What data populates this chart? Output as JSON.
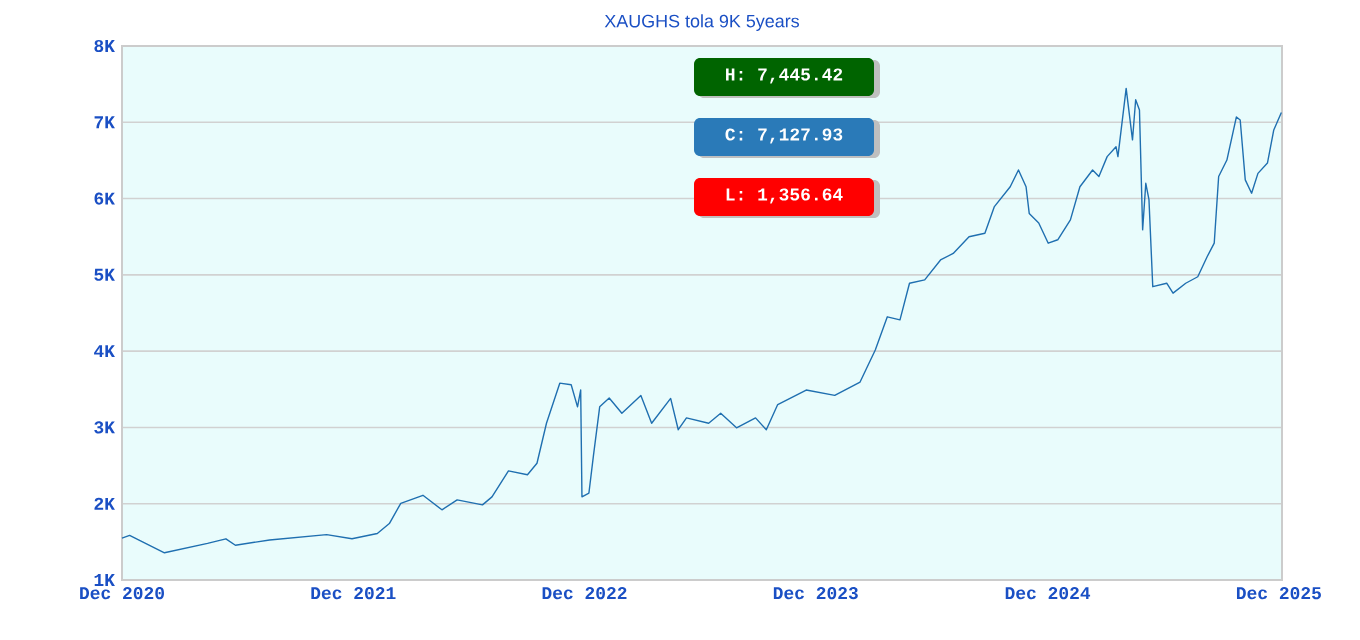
{
  "chart_data": {
    "type": "line",
    "title": "XAUGHS tola 9K 5years",
    "x": [
      "2020-12-01",
      "2020-12-13",
      "2021-02-06",
      "2021-04-15",
      "2021-05-14",
      "2021-05-29",
      "2021-07-22",
      "2021-10-20",
      "2021-11-29",
      "2022-01-08",
      "2022-01-27",
      "2022-02-14",
      "2022-03-21",
      "2022-04-20",
      "2022-05-14",
      "2022-06-23",
      "2022-07-08",
      "2022-08-03",
      "2022-09-02",
      "2022-09-17",
      "2022-10-02",
      "2022-10-23",
      "2022-11-10",
      "2022-11-20",
      "2022-11-25",
      "2022-11-27",
      "2022-12-08",
      "2022-12-15",
      "2022-12-25",
      "2023-01-09",
      "2023-01-29",
      "2023-02-28",
      "2023-03-17",
      "2023-04-16",
      "2023-04-28",
      "2023-05-11",
      "2023-06-15",
      "2023-07-04",
      "2023-07-29",
      "2023-08-28",
      "2023-09-14",
      "2023-10-02",
      "2023-11-16",
      "2023-12-31",
      "2024-02-09",
      "2024-03-04",
      "2024-03-23",
      "2024-04-12",
      "2024-04-27",
      "2024-05-21",
      "2024-06-15",
      "2024-07-05",
      "2024-07-30",
      "2024-08-24",
      "2024-09-08",
      "2024-10-03",
      "2024-10-16",
      "2024-10-28",
      "2024-11-02",
      "2024-11-17",
      "2024-12-02",
      "2024-12-17",
      "2025-01-06",
      "2025-01-21",
      "2025-02-10",
      "2025-02-20",
      "2025-03-05",
      "2025-03-19",
      "2025-03-22",
      "2025-04-04",
      "2025-04-14",
      "2025-04-19",
      "2025-04-25",
      "2025-04-30",
      "2025-05-05",
      "2025-05-10",
      "2025-05-16",
      "2025-06-07",
      "2025-06-17",
      "2025-07-07",
      "2025-07-26",
      "2025-08-10",
      "2025-08-21",
      "2025-08-28",
      "2025-09-10",
      "2025-09-25",
      "2025-10-01",
      "2025-10-09",
      "2025-10-19",
      "2025-10-29",
      "2025-11-13",
      "2025-11-23",
      "2025-12-05"
    ],
    "series": [
      {
        "color": "#1f6fb0",
        "values": [
          1550,
          1585,
          1357,
          1480,
          1540,
          1455,
          1525,
          1595,
          1540,
          1610,
          1740,
          2005,
          2110,
          1920,
          2050,
          1985,
          2090,
          2430,
          2380,
          2530,
          3055,
          3580,
          3560,
          3270,
          3490,
          2090,
          2140,
          2620,
          3270,
          3385,
          3185,
          3420,
          3055,
          3380,
          2970,
          3125,
          3055,
          3185,
          2995,
          3125,
          2970,
          3300,
          3490,
          3420,
          3595,
          4015,
          4450,
          4410,
          4890,
          4935,
          5195,
          5280,
          5500,
          5545,
          5895,
          6155,
          6375,
          6155,
          5805,
          5680,
          5415,
          5460,
          5720,
          6155,
          6375,
          6290,
          6550,
          6680,
          6550,
          7445,
          6770,
          7295,
          7160,
          5590,
          6200,
          5985,
          4845,
          4890,
          4760,
          4890,
          4975,
          5240,
          5415,
          6290,
          6505,
          7070,
          7030,
          6245,
          6070,
          6330,
          6465,
          6900,
          7128
        ]
      }
    ],
    "xlim": [
      "2020-12-01",
      "2025-12-06"
    ],
    "xticks": [
      {
        "value": "2020-12-01",
        "label": "Dec 2020"
      },
      {
        "value": "2021-12-01",
        "label": "Dec 2021"
      },
      {
        "value": "2022-12-01",
        "label": "Dec 2022"
      },
      {
        "value": "2023-12-01",
        "label": "Dec 2023"
      },
      {
        "value": "2024-12-01",
        "label": "Dec 2024"
      },
      {
        "value": "2025-12-01",
        "label": "Dec 2025"
      }
    ],
    "ylim": [
      1000,
      8000
    ],
    "yticks": [
      {
        "value": 1000,
        "label": "1K"
      },
      {
        "value": 2000,
        "label": "2K"
      },
      {
        "value": 3000,
        "label": "3K"
      },
      {
        "value": 4000,
        "label": "4K"
      },
      {
        "value": 5000,
        "label": "5K"
      },
      {
        "value": 6000,
        "label": "6K"
      },
      {
        "value": 7000,
        "label": "7K"
      },
      {
        "value": 8000,
        "label": "8K"
      }
    ],
    "grid": "y",
    "annotations": [
      "H: 7,445.42",
      "C: 7,127.93",
      "L: 1,356.64"
    ]
  }
}
